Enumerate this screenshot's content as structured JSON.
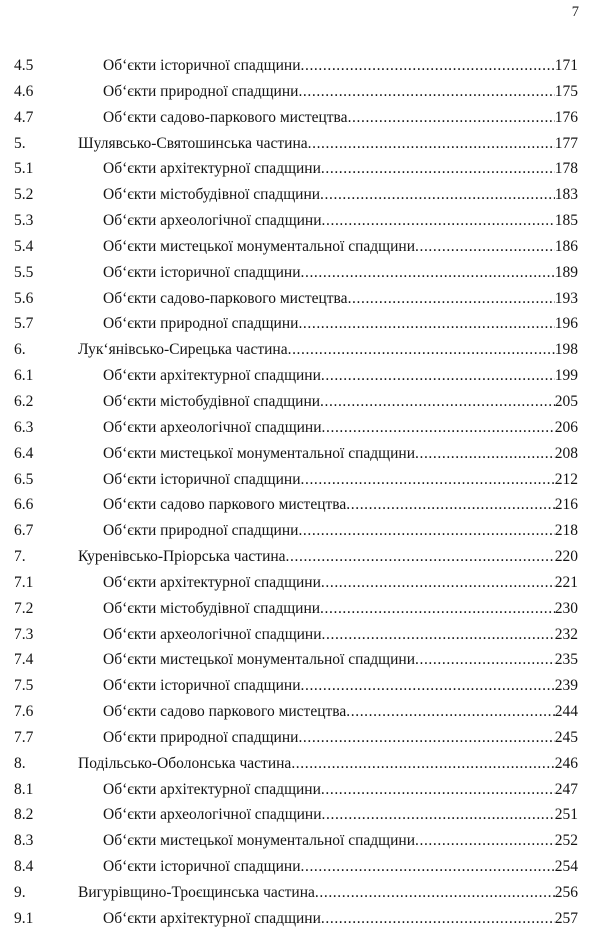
{
  "page": {
    "folio": "7"
  },
  "toc": {
    "entries": [
      {
        "num": "4.5",
        "level": "sub",
        "label": "Об‘єкти історичної спадщини",
        "page": "171"
      },
      {
        "num": "4.6",
        "level": "sub",
        "label": "Об‘єкти природної спадщини",
        "page": "175"
      },
      {
        "num": "4.7",
        "level": "sub",
        "label": "Об‘єкти садово-паркового мистецтва",
        "page": "176"
      },
      {
        "num": "5.",
        "level": "main",
        "label": "Шулявсько-Святошинська частина",
        "page": "177"
      },
      {
        "num": "5.1",
        "level": "sub",
        "label": "Об‘єкти архітектурної спадщини",
        "page": "178"
      },
      {
        "num": "5.2",
        "level": "sub",
        "label": "Об‘єкти містобудівної спадщини",
        "page": "183"
      },
      {
        "num": "5.3",
        "level": "sub",
        "label": "Об‘єкти археологічної спадщини",
        "page": "185"
      },
      {
        "num": "5.4",
        "level": "sub",
        "label": "Об‘єкти мистецької монументальної спадщини",
        "page": "186"
      },
      {
        "num": "5.5",
        "level": "sub",
        "label": "Об‘єкти історичної спадщини",
        "page": "189"
      },
      {
        "num": "5.6",
        "level": "sub",
        "label": "Об‘єкти садово-паркового мистецтва",
        "page": "193"
      },
      {
        "num": "5.7",
        "level": "sub",
        "label": "Об‘єкти природної спадщини",
        "page": "196"
      },
      {
        "num": "6.",
        "level": "main",
        "label": "Лук‘янівсько-Сирецька частина",
        "page": "198"
      },
      {
        "num": "6.1",
        "level": "sub",
        "label": "Об‘єкти архітектурної спадщини",
        "page": "199"
      },
      {
        "num": "6.2",
        "level": "sub",
        "label": "Об‘єкти містобудівної спадщини",
        "page": "205"
      },
      {
        "num": "6.3",
        "level": "sub",
        "label": "Об‘єкти археологічної спадщини",
        "page": "206"
      },
      {
        "num": "6.4",
        "level": "sub",
        "label": "Об‘єкти мистецької монументальної спадщини",
        "page": "208"
      },
      {
        "num": "6.5",
        "level": "sub",
        "label": "Об‘єкти історичної спадщини",
        "page": "212"
      },
      {
        "num": "6.6",
        "level": "sub",
        "label": "Об‘єкти садово паркового мистецтва",
        "page": "216"
      },
      {
        "num": "6.7",
        "level": "sub",
        "label": "Об‘єкти природної спадщини",
        "page": "218"
      },
      {
        "num": "7.",
        "level": "main",
        "label": "Куренівсько-Пріорська частина",
        "page": "220"
      },
      {
        "num": "7.1",
        "level": "sub",
        "label": "Об‘єкти архітектурної спадщини",
        "page": "221"
      },
      {
        "num": "7.2",
        "level": "sub",
        "label": "Об‘єкти містобудівної спадщини",
        "page": "230"
      },
      {
        "num": "7.3",
        "level": "sub",
        "label": "Об‘єкти археологічної спадщини",
        "page": "232"
      },
      {
        "num": "7.4",
        "level": "sub",
        "label": "Об‘єкти мистецької монументальної спадщини",
        "page": "235"
      },
      {
        "num": "7.5",
        "level": "sub",
        "label": "Об‘єкти історичної спадщини",
        "page": "239"
      },
      {
        "num": "7.6",
        "level": "sub",
        "label": "Об‘єкти садово паркового мистецтва",
        "page": "244"
      },
      {
        "num": "7.7",
        "level": "sub",
        "label": "Об‘єкти природної спадщини",
        "page": "245"
      },
      {
        "num": "8.",
        "level": "main",
        "label": "Подільсько-Оболонська частина",
        "page": "246"
      },
      {
        "num": "8.1",
        "level": "sub",
        "label": "Об‘єкти архітектурної спадщини",
        "page": "247"
      },
      {
        "num": "8.2",
        "level": "sub",
        "label": "Об‘єкти археологічної спадщини",
        "page": "251"
      },
      {
        "num": "8.3",
        "level": "sub",
        "label": "Об‘єкти мистецької монументальної спадщини",
        "page": "252"
      },
      {
        "num": "8.4",
        "level": "sub",
        "label": "Об‘єкти історичної спадщини",
        "page": "254"
      },
      {
        "num": "9.",
        "level": "main",
        "label": "Вигурівщино-Троєщинська частина",
        "page": "256"
      },
      {
        "num": "9.1",
        "level": "sub",
        "label": "Об‘єкти архітектурної спадщини",
        "page": "257"
      }
    ]
  }
}
